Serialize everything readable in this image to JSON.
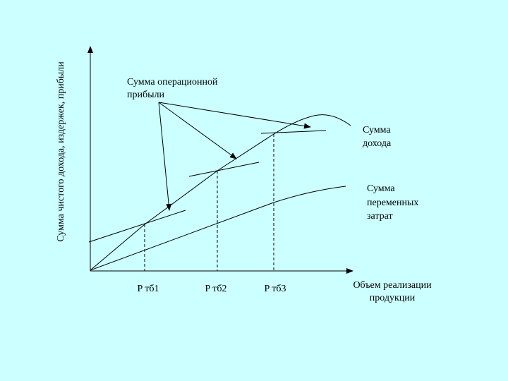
{
  "y_axis_label": "Сумма чистого дохода, издержек, прибыли",
  "labels": {
    "operating_profit": [
      "Сумма операционной",
      "прибыли"
    ],
    "revenue": [
      "Сумма",
      "дохода"
    ],
    "variable_costs": [
      "Сумма",
      "переменных",
      "затрат"
    ]
  },
  "x_axis_label": [
    "Объем реализации",
    "продукции"
  ],
  "points": [
    "P тб1",
    "P тб2",
    "P тб3"
  ]
}
